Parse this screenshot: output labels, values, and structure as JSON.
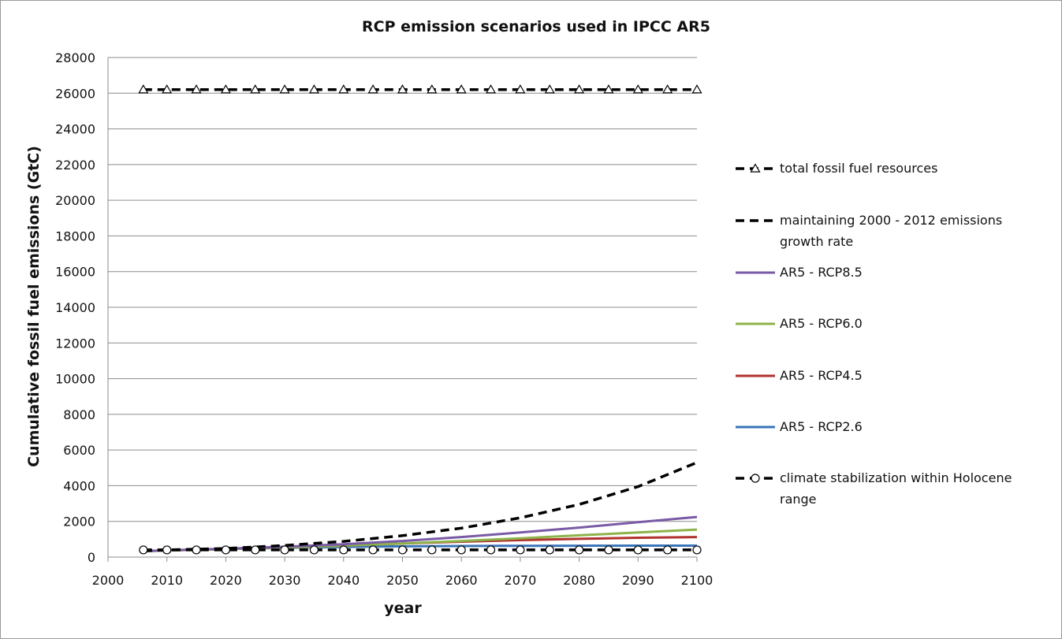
{
  "chart_data": {
    "type": "line",
    "title": "RCP emission scenarios used in IPCC AR5",
    "xlabel": "year",
    "ylabel": "Cumulative fossil fuel emissions (GtC)",
    "xlim": [
      2000,
      2100
    ],
    "ylim": [
      0,
      28000
    ],
    "x_ticks": [
      "2000",
      "2010",
      "2020",
      "2030",
      "2040",
      "2050",
      "2060",
      "2070",
      "2080",
      "2090",
      "2100"
    ],
    "y_ticks": [
      "0",
      "2000",
      "4000",
      "6000",
      "8000",
      "10000",
      "12000",
      "14000",
      "16000",
      "18000",
      "20000",
      "22000",
      "24000",
      "26000",
      "28000"
    ],
    "grid": "horizontal",
    "legend_position": "right",
    "series": [
      {
        "name": "total fossil fuel resources",
        "color": "#000000",
        "style": "dash-marker-triangle",
        "x": [
          2006,
          2010,
          2015,
          2020,
          2025,
          2030,
          2035,
          2040,
          2045,
          2050,
          2055,
          2060,
          2065,
          2070,
          2075,
          2080,
          2085,
          2090,
          2095,
          2100
        ],
        "y": [
          26200,
          26200,
          26200,
          26200,
          26200,
          26200,
          26200,
          26200,
          26200,
          26200,
          26200,
          26200,
          26200,
          26200,
          26200,
          26200,
          26200,
          26200,
          26200,
          26200
        ]
      },
      {
        "name": "maintaining 2000 - 2012 emissions growth rate",
        "color": "#000000",
        "style": "dash",
        "x": [
          2006,
          2010,
          2020,
          2030,
          2040,
          2050,
          2060,
          2070,
          2080,
          2090,
          2100
        ],
        "y": [
          350,
          400,
          480,
          650,
          880,
          1200,
          1620,
          2200,
          2950,
          3950,
          5300
        ]
      },
      {
        "name": "AR5 - RCP8.5",
        "color": "#7a5aa6",
        "style": "solid",
        "x": [
          2006,
          2010,
          2020,
          2030,
          2040,
          2050,
          2060,
          2070,
          2080,
          2090,
          2100
        ],
        "y": [
          330,
          380,
          470,
          580,
          720,
          900,
          1120,
          1380,
          1650,
          1950,
          2250
        ]
      },
      {
        "name": "AR5 - RCP6.0",
        "color": "#8db34a",
        "style": "solid",
        "x": [
          2006,
          2010,
          2020,
          2030,
          2040,
          2050,
          2060,
          2070,
          2080,
          2090,
          2100
        ],
        "y": [
          330,
          370,
          450,
          540,
          640,
          760,
          900,
          1050,
          1220,
          1380,
          1540
        ]
      },
      {
        "name": "AR5 - RCP4.5",
        "color": "#b0312d",
        "style": "solid",
        "x": [
          2006,
          2010,
          2020,
          2030,
          2040,
          2050,
          2060,
          2070,
          2080,
          2090,
          2100
        ],
        "y": [
          330,
          370,
          450,
          540,
          640,
          760,
          860,
          950,
          1020,
          1080,
          1120
        ]
      },
      {
        "name": "AR5 - RCP2.6",
        "color": "#3a74b8",
        "style": "solid",
        "x": [
          2006,
          2010,
          2020,
          2030,
          2040,
          2050,
          2060,
          2070,
          2080,
          2090,
          2100
        ],
        "y": [
          330,
          370,
          450,
          520,
          570,
          600,
          620,
          630,
          635,
          640,
          640
        ]
      },
      {
        "name": "climate stabilization within Holocene range",
        "color": "#000000",
        "style": "dash-marker-circle",
        "x": [
          2006,
          2010,
          2015,
          2020,
          2025,
          2030,
          2035,
          2040,
          2045,
          2050,
          2055,
          2060,
          2065,
          2070,
          2075,
          2080,
          2085,
          2090,
          2095,
          2100
        ],
        "y": [
          400,
          400,
          400,
          400,
          400,
          400,
          400,
          400,
          400,
          400,
          400,
          400,
          400,
          400,
          400,
          400,
          400,
          400,
          400,
          400
        ]
      }
    ],
    "legend": [
      {
        "lines": [
          "total fossil fuel resources"
        ],
        "series": 0
      },
      {
        "lines": [
          "maintaining 2000 - 2012 emissions",
          "growth rate"
        ],
        "series": 1
      },
      {
        "lines": [
          "AR5 - RCP8.5"
        ],
        "series": 2
      },
      {
        "lines": [
          "AR5 - RCP6.0"
        ],
        "series": 3
      },
      {
        "lines": [
          "AR5 - RCP4.5"
        ],
        "series": 4
      },
      {
        "lines": [
          "AR5 - RCP2.6"
        ],
        "series": 5
      },
      {
        "lines": [
          "climate stabilization within Holocene",
          "range"
        ],
        "series": 6
      }
    ]
  }
}
